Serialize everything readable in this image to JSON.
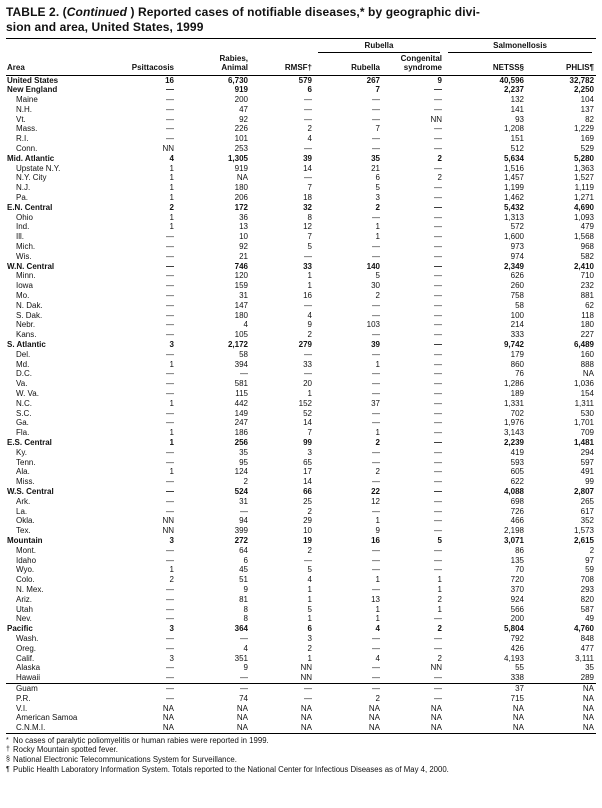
{
  "title": {
    "prefix": "TABLE 2. (",
    "continued": "Continued",
    "line1_rest": " ) Reported cases of notifiable diseases,* by geographic divi-",
    "line2": "sion and area, United States, 1999"
  },
  "table": {
    "group_headers": {
      "rubella": "Rubella",
      "salmonellosis": "Salmonellosis"
    },
    "columns": {
      "area": "Area",
      "psittacosis": "Psittacosis",
      "rabies_line1": "Rabies,",
      "rabies_line2": "Animal",
      "rmsf": "RMSF†",
      "rubella": "Rubella",
      "congenital_line1": "Congenital",
      "congenital_line2": "syndrome",
      "netss": "NETSS§",
      "phlis": "PHLIS¶"
    },
    "rows": [
      {
        "area": "United States",
        "bold": true,
        "indent": false,
        "values": [
          "16",
          "6,730",
          "579",
          "267",
          "9",
          "40,596",
          "32,782"
        ]
      },
      {
        "area": "New England",
        "bold": true,
        "indent": false,
        "values": [
          "—",
          "919",
          "6",
          "7",
          "—",
          "2,237",
          "2,250"
        ]
      },
      {
        "area": "Maine",
        "bold": false,
        "indent": true,
        "values": [
          "—",
          "200",
          "—",
          "—",
          "—",
          "132",
          "104"
        ]
      },
      {
        "area": "N.H.",
        "bold": false,
        "indent": true,
        "values": [
          "—",
          "47",
          "—",
          "—",
          "—",
          "141",
          "137"
        ]
      },
      {
        "area": "Vt.",
        "bold": false,
        "indent": true,
        "values": [
          "—",
          "92",
          "—",
          "—",
          "NN",
          "93",
          "82"
        ]
      },
      {
        "area": "Mass.",
        "bold": false,
        "indent": true,
        "values": [
          "—",
          "226",
          "2",
          "7",
          "—",
          "1,208",
          "1,229"
        ]
      },
      {
        "area": "R.I.",
        "bold": false,
        "indent": true,
        "values": [
          "—",
          "101",
          "4",
          "—",
          "—",
          "151",
          "169"
        ]
      },
      {
        "area": "Conn.",
        "bold": false,
        "indent": true,
        "values": [
          "NN",
          "253",
          "—",
          "—",
          "—",
          "512",
          "529"
        ]
      },
      {
        "area": "Mid. Atlantic",
        "bold": true,
        "indent": false,
        "values": [
          "4",
          "1,305",
          "39",
          "35",
          "2",
          "5,634",
          "5,280"
        ]
      },
      {
        "area": "Upstate N.Y.",
        "bold": false,
        "indent": true,
        "values": [
          "1",
          "919",
          "14",
          "21",
          "—",
          "1,516",
          "1,363"
        ]
      },
      {
        "area": "N.Y. City",
        "bold": false,
        "indent": true,
        "values": [
          "1",
          "NA",
          "—",
          "6",
          "2",
          "1,457",
          "1,527"
        ]
      },
      {
        "area": "N.J.",
        "bold": false,
        "indent": true,
        "values": [
          "1",
          "180",
          "7",
          "5",
          "—",
          "1,199",
          "1,119"
        ]
      },
      {
        "area": "Pa.",
        "bold": false,
        "indent": true,
        "values": [
          "1",
          "206",
          "18",
          "3",
          "—",
          "1,462",
          "1,271"
        ]
      },
      {
        "area": "E.N. Central",
        "bold": true,
        "indent": false,
        "values": [
          "2",
          "172",
          "32",
          "2",
          "—",
          "5,432",
          "4,690"
        ]
      },
      {
        "area": "Ohio",
        "bold": false,
        "indent": true,
        "values": [
          "1",
          "36",
          "8",
          "—",
          "—",
          "1,313",
          "1,093"
        ]
      },
      {
        "area": "Ind.",
        "bold": false,
        "indent": true,
        "values": [
          "1",
          "13",
          "12",
          "1",
          "—",
          "572",
          "479"
        ]
      },
      {
        "area": "Ill.",
        "bold": false,
        "indent": true,
        "values": [
          "—",
          "10",
          "7",
          "1",
          "—",
          "1,600",
          "1,568"
        ]
      },
      {
        "area": "Mich.",
        "bold": false,
        "indent": true,
        "values": [
          "—",
          "92",
          "5",
          "—",
          "—",
          "973",
          "968"
        ]
      },
      {
        "area": "Wis.",
        "bold": false,
        "indent": true,
        "values": [
          "—",
          "21",
          "—",
          "—",
          "—",
          "974",
          "582"
        ]
      },
      {
        "area": "W.N. Central",
        "bold": true,
        "indent": false,
        "values": [
          "—",
          "746",
          "33",
          "140",
          "—",
          "2,349",
          "2,410"
        ]
      },
      {
        "area": "Minn.",
        "bold": false,
        "indent": true,
        "values": [
          "—",
          "120",
          "1",
          "5",
          "—",
          "626",
          "710"
        ]
      },
      {
        "area": "Iowa",
        "bold": false,
        "indent": true,
        "values": [
          "—",
          "159",
          "1",
          "30",
          "—",
          "260",
          "232"
        ]
      },
      {
        "area": "Mo.",
        "bold": false,
        "indent": true,
        "values": [
          "—",
          "31",
          "16",
          "2",
          "—",
          "758",
          "881"
        ]
      },
      {
        "area": "N. Dak.",
        "bold": false,
        "indent": true,
        "values": [
          "—",
          "147",
          "—",
          "—",
          "—",
          "58",
          "62"
        ]
      },
      {
        "area": "S. Dak.",
        "bold": false,
        "indent": true,
        "values": [
          "—",
          "180",
          "4",
          "—",
          "—",
          "100",
          "118"
        ]
      },
      {
        "area": "Nebr.",
        "bold": false,
        "indent": true,
        "values": [
          "—",
          "4",
          "9",
          "103",
          "—",
          "214",
          "180"
        ]
      },
      {
        "area": "Kans.",
        "bold": false,
        "indent": true,
        "values": [
          "—",
          "105",
          "2",
          "—",
          "—",
          "333",
          "227"
        ]
      },
      {
        "area": "S. Atlantic",
        "bold": true,
        "indent": false,
        "values": [
          "3",
          "2,172",
          "279",
          "39",
          "—",
          "9,742",
          "6,489"
        ]
      },
      {
        "area": "Del.",
        "bold": false,
        "indent": true,
        "values": [
          "—",
          "58",
          "—",
          "—",
          "—",
          "179",
          "160"
        ]
      },
      {
        "area": "Md.",
        "bold": false,
        "indent": true,
        "values": [
          "1",
          "394",
          "33",
          "1",
          "—",
          "860",
          "888"
        ]
      },
      {
        "area": "D.C.",
        "bold": false,
        "indent": true,
        "values": [
          "—",
          "—",
          "—",
          "—",
          "—",
          "76",
          "NA"
        ]
      },
      {
        "area": "Va.",
        "bold": false,
        "indent": true,
        "values": [
          "—",
          "581",
          "20",
          "—",
          "—",
          "1,286",
          "1,036"
        ]
      },
      {
        "area": "W. Va.",
        "bold": false,
        "indent": true,
        "values": [
          "—",
          "115",
          "1",
          "—",
          "—",
          "189",
          "154"
        ]
      },
      {
        "area": "N.C.",
        "bold": false,
        "indent": true,
        "values": [
          "1",
          "442",
          "152",
          "37",
          "—",
          "1,331",
          "1,311"
        ]
      },
      {
        "area": "S.C.",
        "bold": false,
        "indent": true,
        "values": [
          "—",
          "149",
          "52",
          "—",
          "—",
          "702",
          "530"
        ]
      },
      {
        "area": "Ga.",
        "bold": false,
        "indent": true,
        "values": [
          "—",
          "247",
          "14",
          "—",
          "—",
          "1,976",
          "1,701"
        ]
      },
      {
        "area": "Fla.",
        "bold": false,
        "indent": true,
        "values": [
          "1",
          "186",
          "7",
          "1",
          "—",
          "3,143",
          "709"
        ]
      },
      {
        "area": "E.S. Central",
        "bold": true,
        "indent": false,
        "values": [
          "1",
          "256",
          "99",
          "2",
          "—",
          "2,239",
          "1,481"
        ]
      },
      {
        "area": "Ky.",
        "bold": false,
        "indent": true,
        "values": [
          "—",
          "35",
          "3",
          "—",
          "—",
          "419",
          "294"
        ]
      },
      {
        "area": "Tenn.",
        "bold": false,
        "indent": true,
        "values": [
          "—",
          "95",
          "65",
          "—",
          "—",
          "593",
          "597"
        ]
      },
      {
        "area": "Ala.",
        "bold": false,
        "indent": true,
        "values": [
          "1",
          "124",
          "17",
          "2",
          "—",
          "605",
          "491"
        ]
      },
      {
        "area": "Miss.",
        "bold": false,
        "indent": true,
        "values": [
          "—",
          "2",
          "14",
          "—",
          "—",
          "622",
          "99"
        ]
      },
      {
        "area": "W.S. Central",
        "bold": true,
        "indent": false,
        "values": [
          "—",
          "524",
          "66",
          "22",
          "—",
          "4,088",
          "2,807"
        ]
      },
      {
        "area": "Ark.",
        "bold": false,
        "indent": true,
        "values": [
          "—",
          "31",
          "25",
          "12",
          "—",
          "698",
          "265"
        ]
      },
      {
        "area": "La.",
        "bold": false,
        "indent": true,
        "values": [
          "—",
          "—",
          "2",
          "—",
          "—",
          "726",
          "617"
        ]
      },
      {
        "area": "Okla.",
        "bold": false,
        "indent": true,
        "values": [
          "NN",
          "94",
          "29",
          "1",
          "—",
          "466",
          "352"
        ]
      },
      {
        "area": "Tex.",
        "bold": false,
        "indent": true,
        "values": [
          "NN",
          "399",
          "10",
          "9",
          "—",
          "2,198",
          "1,573"
        ]
      },
      {
        "area": "Mountain",
        "bold": true,
        "indent": false,
        "values": [
          "3",
          "272",
          "19",
          "16",
          "5",
          "3,071",
          "2,615"
        ]
      },
      {
        "area": "Mont.",
        "bold": false,
        "indent": true,
        "values": [
          "—",
          "64",
          "2",
          "—",
          "—",
          "86",
          "2"
        ]
      },
      {
        "area": "Idaho",
        "bold": false,
        "indent": true,
        "values": [
          "—",
          "6",
          "—",
          "—",
          "—",
          "135",
          "97"
        ]
      },
      {
        "area": "Wyo.",
        "bold": false,
        "indent": true,
        "values": [
          "1",
          "45",
          "5",
          "—",
          "—",
          "70",
          "59"
        ]
      },
      {
        "area": "Colo.",
        "bold": false,
        "indent": true,
        "values": [
          "2",
          "51",
          "4",
          "1",
          "1",
          "720",
          "708"
        ]
      },
      {
        "area": "N. Mex.",
        "bold": false,
        "indent": true,
        "values": [
          "—",
          "9",
          "1",
          "—",
          "1",
          "370",
          "293"
        ]
      },
      {
        "area": "Ariz.",
        "bold": false,
        "indent": true,
        "values": [
          "—",
          "81",
          "1",
          "13",
          "2",
          "924",
          "820"
        ]
      },
      {
        "area": "Utah",
        "bold": false,
        "indent": true,
        "values": [
          "—",
          "8",
          "5",
          "1",
          "1",
          "566",
          "587"
        ]
      },
      {
        "area": "Nev.",
        "bold": false,
        "indent": true,
        "values": [
          "—",
          "8",
          "1",
          "1",
          "—",
          "200",
          "49"
        ]
      },
      {
        "area": "Pacific",
        "bold": true,
        "indent": false,
        "values": [
          "3",
          "364",
          "6",
          "4",
          "2",
          "5,804",
          "4,760"
        ]
      },
      {
        "area": "Wash.",
        "bold": false,
        "indent": true,
        "values": [
          "—",
          "—",
          "3",
          "—",
          "—",
          "792",
          "848"
        ]
      },
      {
        "area": "Oreg.",
        "bold": false,
        "indent": true,
        "values": [
          "—",
          "4",
          "2",
          "—",
          "—",
          "426",
          "477"
        ]
      },
      {
        "area": "Calif.",
        "bold": false,
        "indent": true,
        "values": [
          "3",
          "351",
          "1",
          "4",
          "2",
          "4,193",
          "3,111"
        ]
      },
      {
        "area": "Alaska",
        "bold": false,
        "indent": true,
        "values": [
          "—",
          "9",
          "NN",
          "—",
          "NN",
          "55",
          "35"
        ]
      },
      {
        "area": "Hawaii",
        "bold": false,
        "indent": true,
        "values": [
          "—",
          "—",
          "NN",
          "—",
          "—",
          "338",
          "289"
        ]
      },
      {
        "area": "Guam",
        "bold": false,
        "indent": true,
        "separator": true,
        "values": [
          "—",
          "—",
          "—",
          "—",
          "—",
          "37",
          "NA"
        ]
      },
      {
        "area": "P.R.",
        "bold": false,
        "indent": true,
        "values": [
          "—",
          "74",
          "—",
          "2",
          "—",
          "715",
          "NA"
        ]
      },
      {
        "area": "V.I.",
        "bold": false,
        "indent": true,
        "values": [
          "NA",
          "NA",
          "NA",
          "NA",
          "NA",
          "NA",
          "NA"
        ]
      },
      {
        "area": "American Samoa",
        "bold": false,
        "indent": true,
        "values": [
          "NA",
          "NA",
          "NA",
          "NA",
          "NA",
          "NA",
          "NA"
        ]
      },
      {
        "area": "C.N.M.I.",
        "bold": false,
        "indent": true,
        "values": [
          "NA",
          "NA",
          "NA",
          "NA",
          "NA",
          "NA",
          "NA"
        ]
      }
    ]
  },
  "footnotes": [
    {
      "symbol": "*",
      "text": "No cases of paralytic poliomyelitis or human rabies were reported in 1999."
    },
    {
      "symbol": "†",
      "text": "Rocky Mountain spotted fever."
    },
    {
      "symbol": "§",
      "text": "National Electronic Telecommunications System for Surveillance."
    },
    {
      "symbol": "¶",
      "text": "Public Health Laboratory Information System. Totals reported to the National Center for Infectious Diseases as of May 4, 2000."
    }
  ]
}
